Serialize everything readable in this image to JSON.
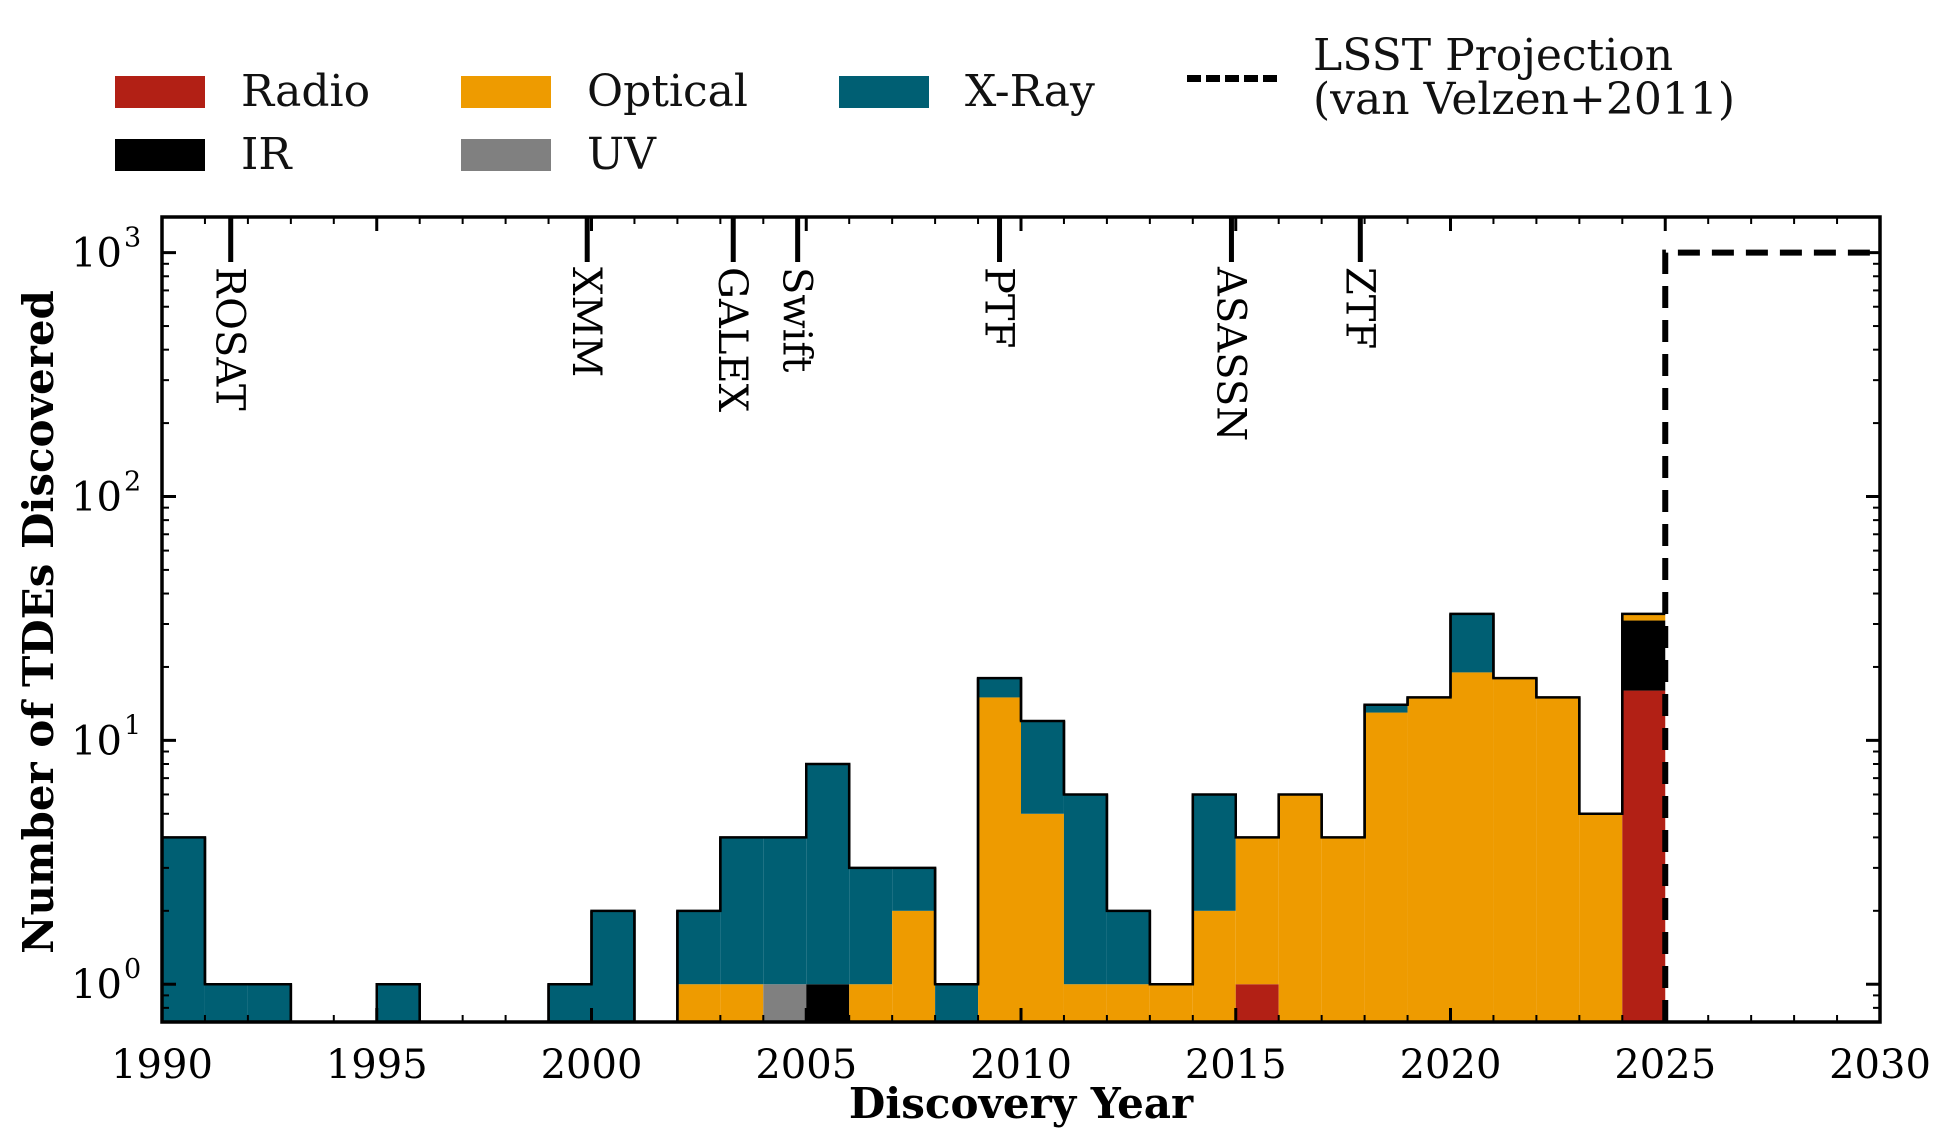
{
  "chart_data": {
    "type": "bar",
    "subtype": "stacked-histogram",
    "xlabel": "Discovery Year",
    "ylabel": "Number of TDEs Discovered",
    "xlim": [
      1990,
      2030
    ],
    "ylim": [
      0.7,
      1400
    ],
    "yscale": "log",
    "bin_width": 1,
    "xticks": [
      1990,
      1995,
      2000,
      2005,
      2010,
      2015,
      2020,
      2025,
      2030
    ],
    "yticks": [
      {
        "value": 1,
        "base": "10",
        "exp": "0"
      },
      {
        "value": 10,
        "base": "10",
        "exp": "1"
      },
      {
        "value": 100,
        "base": "10",
        "exp": "2"
      },
      {
        "value": 1000,
        "base": "10",
        "exp": "3"
      }
    ],
    "stack_order": [
      "Radio",
      "IR",
      "UV",
      "Optical",
      "X-Ray"
    ],
    "series_colors": {
      "Radio": "#b22015",
      "IR": "#000000",
      "UV": "#808080",
      "Optical": "#ee9b00",
      "X-Ray": "#005f73"
    },
    "bins": [
      {
        "year": 1990,
        "Radio": 0,
        "IR": 0,
        "UV": 0,
        "Optical": 0,
        "X-Ray": 4
      },
      {
        "year": 1991,
        "Radio": 0,
        "IR": 0,
        "UV": 0,
        "Optical": 0,
        "X-Ray": 1
      },
      {
        "year": 1992,
        "Radio": 0,
        "IR": 0,
        "UV": 0,
        "Optical": 0,
        "X-Ray": 1
      },
      {
        "year": 1995,
        "Radio": 0,
        "IR": 0,
        "UV": 0,
        "Optical": 0,
        "X-Ray": 1
      },
      {
        "year": 1999,
        "Radio": 0,
        "IR": 0,
        "UV": 0,
        "Optical": 0,
        "X-Ray": 1
      },
      {
        "year": 2000,
        "Radio": 0,
        "IR": 0,
        "UV": 0,
        "Optical": 0,
        "X-Ray": 2
      },
      {
        "year": 2002,
        "Radio": 0,
        "IR": 0,
        "UV": 0,
        "Optical": 1,
        "X-Ray": 1
      },
      {
        "year": 2003,
        "Radio": 0,
        "IR": 0,
        "UV": 0,
        "Optical": 1,
        "X-Ray": 3
      },
      {
        "year": 2004,
        "Radio": 0,
        "IR": 0,
        "UV": 1,
        "Optical": 0,
        "X-Ray": 3
      },
      {
        "year": 2005,
        "Radio": 0,
        "IR": 1,
        "UV": 0,
        "Optical": 0,
        "X-Ray": 7
      },
      {
        "year": 2006,
        "Radio": 0,
        "IR": 0,
        "UV": 0,
        "Optical": 1,
        "X-Ray": 2
      },
      {
        "year": 2007,
        "Radio": 0,
        "IR": 0,
        "UV": 0,
        "Optical": 2,
        "X-Ray": 1
      },
      {
        "year": 2008,
        "Radio": 0,
        "IR": 0,
        "UV": 0,
        "Optical": 0,
        "X-Ray": 1
      },
      {
        "year": 2009,
        "Radio": 0,
        "IR": 0,
        "UV": 0,
        "Optical": 15,
        "X-Ray": 3
      },
      {
        "year": 2010,
        "Radio": 0,
        "IR": 0,
        "UV": 0,
        "Optical": 5,
        "X-Ray": 7
      },
      {
        "year": 2011,
        "Radio": 0,
        "IR": 0,
        "UV": 0,
        "Optical": 1,
        "X-Ray": 5
      },
      {
        "year": 2012,
        "Radio": 0,
        "IR": 0,
        "UV": 0,
        "Optical": 1,
        "X-Ray": 1
      },
      {
        "year": 2013,
        "Radio": 0,
        "IR": 0,
        "UV": 0,
        "Optical": 1,
        "X-Ray": 0
      },
      {
        "year": 2014,
        "Radio": 0,
        "IR": 0,
        "UV": 0,
        "Optical": 2,
        "X-Ray": 4
      },
      {
        "year": 2015,
        "Radio": 1,
        "IR": 0,
        "UV": 0,
        "Optical": 3,
        "X-Ray": 0
      },
      {
        "year": 2016,
        "Radio": 0,
        "IR": 0,
        "UV": 0,
        "Optical": 6,
        "X-Ray": 0
      },
      {
        "year": 2017,
        "Radio": 0,
        "IR": 0,
        "UV": 0,
        "Optical": 4,
        "X-Ray": 0
      },
      {
        "year": 2018,
        "Radio": 0,
        "IR": 0,
        "UV": 0,
        "Optical": 13,
        "X-Ray": 1
      },
      {
        "year": 2019,
        "Radio": 0,
        "IR": 0,
        "UV": 0,
        "Optical": 15,
        "X-Ray": 0
      },
      {
        "year": 2020,
        "Radio": 0,
        "IR": 0,
        "UV": 0,
        "Optical": 19,
        "X-Ray": 14
      },
      {
        "year": 2021,
        "Radio": 0,
        "IR": 0,
        "UV": 0,
        "Optical": 18,
        "X-Ray": 0
      },
      {
        "year": 2022,
        "Radio": 0,
        "IR": 0,
        "UV": 0,
        "Optical": 15,
        "X-Ray": 0
      },
      {
        "year": 2023,
        "Radio": 0,
        "IR": 0,
        "UV": 0,
        "Optical": 5,
        "X-Ray": 0
      },
      {
        "year": 2024,
        "Radio": 16,
        "IR": 15,
        "UV": 0,
        "Optical": 2,
        "X-Ray": 0
      }
    ],
    "projection": {
      "name": "LSST Projection\n(van Velzen+2011)",
      "start_year": 2025,
      "value": 1000,
      "style": "dashed"
    },
    "missions": [
      {
        "name": "ROSAT",
        "year": 1991.6
      },
      {
        "name": "XMM",
        "year": 1999.9
      },
      {
        "name": "GALEX",
        "year": 2003.3
      },
      {
        "name": "Swift",
        "year": 2004.8
      },
      {
        "name": "PTF",
        "year": 2009.5
      },
      {
        "name": "ASASSN",
        "year": 2014.9
      },
      {
        "name": "ZTF",
        "year": 2017.9
      }
    ],
    "legend": {
      "placement": "top",
      "entries": [
        {
          "label": "Radio",
          "key": "Radio"
        },
        {
          "label": "IR",
          "key": "IR"
        },
        {
          "label": "Optical",
          "key": "Optical"
        },
        {
          "label": "UV",
          "key": "UV"
        },
        {
          "label": "X-Ray",
          "key": "X-Ray"
        },
        {
          "label": "LSST Projection\n(van Velzen+2011)",
          "key": "projection"
        }
      ]
    }
  }
}
